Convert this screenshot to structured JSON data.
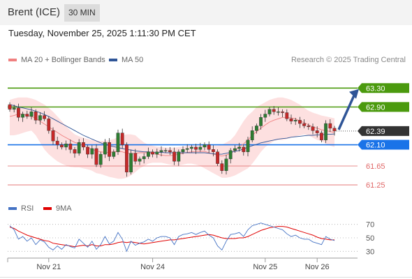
{
  "header": {
    "title": "Brent (ICE)",
    "timeframe": "30 MIN"
  },
  "datetime": "Tuesday, November 25, 2025 1:11:30 PM CET",
  "legend": {
    "ma20": {
      "label": "MA 20 + Bollinger Bands",
      "color": "#f08080"
    },
    "ma50": {
      "label": "MA 50",
      "color": "#2f5597"
    }
  },
  "credit": "Research © 2025 Trading Central",
  "chart_data": [
    {
      "type": "candlestick",
      "title": "",
      "ylim": [
        61.0,
        63.6
      ],
      "price_levels": [
        {
          "value": 63.3,
          "label": "63.30",
          "kind": "resistance",
          "color": "#4b9a0e"
        },
        {
          "value": 62.9,
          "label": "62.90",
          "kind": "resistance",
          "color": "#4b9a0e"
        },
        {
          "value": 62.39,
          "label": "62.39",
          "kind": "last",
          "color": "#333333"
        },
        {
          "value": 62.1,
          "label": "62.10",
          "kind": "pivot",
          "color": "#1a73e8"
        },
        {
          "value": 61.65,
          "label": "61.65",
          "kind": "support",
          "color": "#e06666"
        },
        {
          "value": 61.25,
          "label": "61.25",
          "kind": "support",
          "color": "#e06666"
        }
      ],
      "x_ticks": [
        {
          "index": 9,
          "label": "Nov 21"
        },
        {
          "index": 33,
          "label": "Nov 24"
        },
        {
          "index": 59,
          "label": "Nov 25"
        },
        {
          "index": 71,
          "label": "Nov 26"
        }
      ],
      "close": [
        62.85,
        62.88,
        62.68,
        62.75,
        62.7,
        62.8,
        62.62,
        62.72,
        62.65,
        62.4,
        62.18,
        62.1,
        62.05,
        62.12,
        62.0,
        61.92,
        62.15,
        62.05,
        61.9,
        62.02,
        61.68,
        61.9,
        62.15,
        61.85,
        61.95,
        62.35,
        62.1,
        61.52,
        61.92,
        61.75,
        61.8,
        61.85,
        61.95,
        61.9,
        61.95,
        61.98,
        61.98,
        61.95,
        61.75,
        61.95,
        62.0,
        62.02,
        62.05,
        62.0,
        62.05,
        62.1,
        62.0,
        61.95,
        61.7,
        61.55,
        61.8,
        61.98,
        62.02,
        62.05,
        61.95,
        62.2,
        62.4,
        62.5,
        62.68,
        62.75,
        62.85,
        62.8,
        62.8,
        62.78,
        62.65,
        62.6,
        62.62,
        62.55,
        62.5,
        62.48,
        62.4,
        62.35,
        62.2,
        62.55,
        62.45,
        62.39
      ],
      "ma20": [
        62.7,
        62.72,
        62.75,
        62.75,
        62.72,
        62.7,
        62.66,
        62.6,
        62.54,
        62.48,
        62.42,
        62.36,
        62.3,
        62.25,
        62.2,
        62.15,
        62.12,
        62.08,
        62.04,
        62.0,
        61.97,
        61.95,
        61.94,
        61.94,
        61.95,
        61.96,
        61.95,
        61.92,
        61.91,
        61.92,
        61.93,
        61.93,
        61.93,
        61.92,
        61.9,
        61.88,
        61.87,
        61.87,
        61.88,
        61.9,
        61.92,
        61.94,
        61.95,
        61.96,
        61.96,
        61.96,
        61.93,
        61.9,
        61.88,
        61.86,
        61.88,
        61.92,
        61.98,
        62.05,
        62.12,
        62.2,
        62.3,
        62.38,
        62.45,
        62.52,
        62.58,
        62.62,
        62.65,
        62.68,
        62.68,
        62.67,
        62.65,
        62.6,
        62.57,
        62.52,
        62.48,
        62.45,
        62.42,
        62.4,
        62.38,
        62.36
      ],
      "ma50": [
        62.95,
        62.93,
        62.9,
        62.88,
        62.86,
        62.84,
        62.81,
        62.78,
        62.74,
        62.7,
        62.65,
        62.6,
        62.55,
        62.5,
        62.45,
        62.4,
        62.35,
        62.3,
        62.26,
        62.22,
        62.18,
        62.14,
        62.11,
        62.08,
        62.06,
        62.04,
        62.02,
        62.0,
        61.99,
        61.97,
        61.96,
        61.95,
        61.95,
        61.94,
        61.94,
        61.94,
        61.93,
        61.93,
        61.93,
        61.93,
        61.93,
        61.93,
        61.93,
        61.93,
        61.93,
        61.93,
        61.92,
        61.91,
        61.9,
        61.9,
        61.92,
        61.94,
        61.96,
        61.98,
        62.01,
        62.05,
        62.08,
        62.11,
        62.14,
        62.16,
        62.18,
        62.2,
        62.22,
        62.23,
        62.24,
        62.26,
        62.27,
        62.28,
        62.29,
        62.3,
        62.3,
        62.31,
        62.31,
        62.32,
        62.32,
        62.33
      ],
      "bb_upper": [
        63.05,
        63.08,
        63.1,
        63.1,
        63.1,
        63.08,
        63.05,
        63.0,
        62.95,
        62.88,
        62.8,
        62.7,
        62.6,
        62.5,
        62.4,
        62.32,
        62.28,
        62.25,
        62.22,
        62.2,
        62.18,
        62.18,
        62.18,
        62.2,
        62.22,
        62.26,
        62.3,
        62.32,
        62.32,
        62.3,
        62.22,
        62.15,
        62.1,
        62.08,
        62.06,
        62.05,
        62.04,
        62.04,
        62.04,
        62.05,
        62.06,
        62.08,
        62.08,
        62.08,
        62.08,
        62.08,
        62.08,
        62.08,
        62.08,
        62.1,
        62.15,
        62.2,
        62.3,
        62.45,
        62.6,
        62.72,
        62.8,
        62.9,
        62.95,
        63.0,
        63.05,
        63.08,
        63.1,
        63.1,
        63.08,
        63.05,
        63.0,
        62.95,
        62.88,
        62.82,
        62.78,
        62.75,
        62.72,
        62.7,
        62.68,
        62.66
      ],
      "bb_lower": [
        62.3,
        62.3,
        62.32,
        62.35,
        62.38,
        62.4,
        62.3,
        62.15,
        62.0,
        61.9,
        61.82,
        61.75,
        61.7,
        61.66,
        61.63,
        61.62,
        61.62,
        61.6,
        61.58,
        61.55,
        61.5,
        61.48,
        61.45,
        61.42,
        61.4,
        61.38,
        61.38,
        61.4,
        61.45,
        61.52,
        61.6,
        61.65,
        61.7,
        61.72,
        61.72,
        61.72,
        61.7,
        61.68,
        61.66,
        61.66,
        61.68,
        61.7,
        61.7,
        61.68,
        61.65,
        61.6,
        61.55,
        61.5,
        61.45,
        61.4,
        61.4,
        61.42,
        61.45,
        61.5,
        61.55,
        61.6,
        61.7,
        61.82,
        61.95,
        62.05,
        62.12,
        62.18,
        62.2,
        62.2,
        62.22,
        62.25,
        62.28,
        62.3,
        62.32,
        62.3,
        62.25,
        62.2,
        62.18,
        62.12,
        62.08,
        62.05
      ]
    },
    {
      "type": "line",
      "title": "",
      "legend": {
        "rsi": {
          "label": "RSI",
          "color": "#4472c4"
        },
        "ma9": {
          "label": "9MA",
          "color": "#e00000"
        }
      },
      "ylim": [
        20,
        80
      ],
      "y_ticks": [
        70,
        50,
        30
      ],
      "rsi": [
        68,
        62,
        48,
        52,
        45,
        50,
        40,
        47,
        44,
        36,
        32,
        38,
        33,
        40,
        37,
        35,
        48,
        42,
        36,
        45,
        33,
        40,
        52,
        41,
        45,
        58,
        48,
        30,
        45,
        39,
        42,
        44,
        48,
        45,
        50,
        52,
        52,
        50,
        40,
        52,
        55,
        56,
        58,
        55,
        58,
        60,
        54,
        50,
        38,
        32,
        45,
        55,
        56,
        58,
        52,
        62,
        68,
        70,
        72,
        70,
        68,
        66,
        64,
        62,
        56,
        52,
        54,
        50,
        48,
        48,
        44,
        42,
        40,
        52,
        48,
        46
      ],
      "ma9": [
        66,
        64,
        60,
        57,
        54,
        52,
        50,
        48,
        46,
        45,
        42,
        41,
        40,
        39,
        38,
        37,
        38,
        39,
        38,
        40,
        38,
        38,
        40,
        40,
        41,
        43,
        44,
        43,
        44,
        43,
        42,
        41,
        42,
        43,
        44,
        45,
        46,
        47,
        47,
        48,
        49,
        50,
        51,
        52,
        53,
        54,
        55,
        54,
        52,
        50,
        49,
        49,
        49,
        50,
        50,
        52,
        55,
        58,
        61,
        63,
        65,
        66,
        67,
        67,
        66,
        64,
        62,
        60,
        58,
        56,
        54,
        51,
        49,
        48,
        47,
        47
      ]
    }
  ]
}
